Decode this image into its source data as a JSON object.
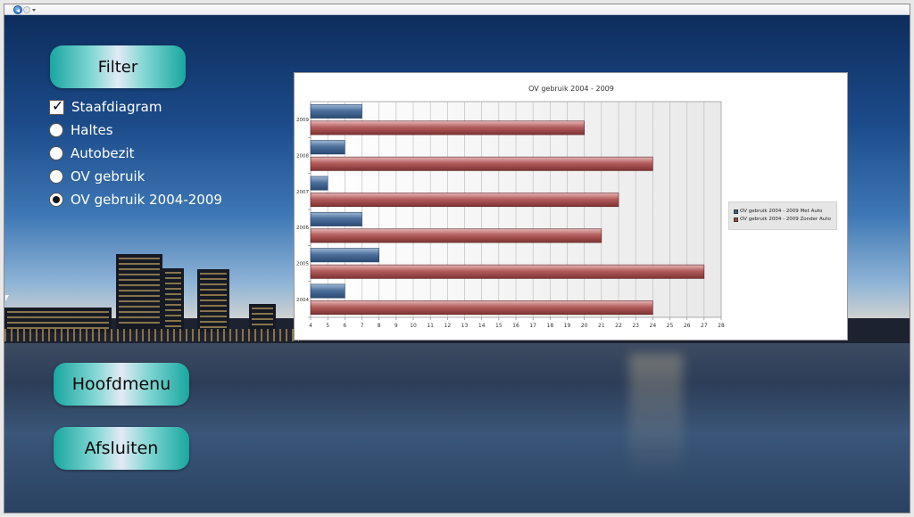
{
  "window": {
    "nav": {
      "back_icon": "back-arrow-icon",
      "forward_icon": "forward-arrow-icon",
      "dropdown_icon": "chevron-down-icon"
    }
  },
  "sidebar": {
    "filter_label": "Filter",
    "options": [
      {
        "label": "Staafdiagram",
        "type": "checkbox",
        "checked": true
      },
      {
        "label": "Haltes",
        "type": "radio",
        "checked": false
      },
      {
        "label": "Autobezit",
        "type": "radio",
        "checked": false
      },
      {
        "label": "OV gebruik",
        "type": "radio",
        "checked": false
      },
      {
        "label": "OV gebruik 2004-2009",
        "type": "radio",
        "checked": true
      }
    ],
    "menu_label": "Hoofdmenu",
    "exit_label": "Afsluiten"
  },
  "colors": {
    "button_accent": "#1aa6a0",
    "series_met_auto": "#3f5f8c",
    "series_zonder_auto": "#a04a4a"
  },
  "chart_data": {
    "type": "bar",
    "orientation": "horizontal",
    "title": "OV gebruik 2004 - 2009",
    "categories": [
      "2004",
      "2005",
      "2006",
      "2007",
      "2008",
      "2009"
    ],
    "series": [
      {
        "name": "OV gebruik 2004 - 2009 Met Auto",
        "values": [
          6,
          8,
          7,
          5,
          6,
          7
        ]
      },
      {
        "name": "OV gebruik 2004 - 2009 Zonder Auto",
        "values": [
          24,
          27,
          21,
          22,
          24,
          20
        ]
      }
    ],
    "xlim": [
      4,
      28
    ],
    "xticks": [
      "4",
      "5",
      "6",
      "7",
      "8",
      "9",
      "10",
      "11",
      "12",
      "13",
      "14",
      "15",
      "16",
      "17",
      "18",
      "19",
      "20",
      "21",
      "22",
      "23",
      "24",
      "25",
      "26",
      "27",
      "28"
    ],
    "grid": true,
    "legend_position": "right"
  }
}
